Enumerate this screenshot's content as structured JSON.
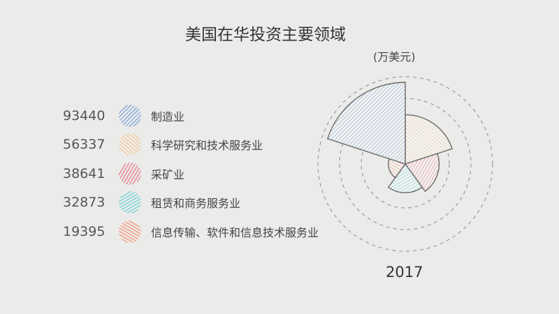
{
  "chart_data": {
    "type": "rose",
    "title": "美国在华投资主要领域",
    "unit": "(万美元)",
    "year": "2017",
    "categories": [
      "制造业",
      "科学研究和技术服务业",
      "采矿业",
      "租赁和商务服务业",
      "信息传输、软件和信息技术服务业"
    ],
    "values": [
      93440,
      56337,
      38641,
      32873,
      19395
    ],
    "value_labels": [
      "93440",
      "56337",
      "38641",
      "32873",
      "19395"
    ],
    "colors": [
      "#9fb8d8",
      "#ecd2b0",
      "#e59aa6",
      "#8fd6d6",
      "#eeab98"
    ],
    "legend_placement": "left"
  }
}
